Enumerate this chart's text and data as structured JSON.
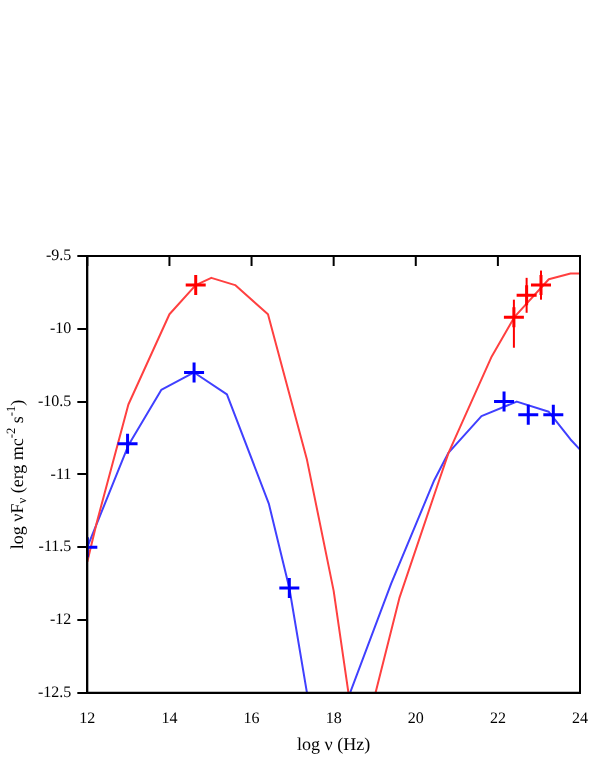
{
  "chart_data": {
    "type": "line",
    "xlabel": "log ν (Hz)",
    "ylabel": "log νF$_{ν}$ (erg mc$^{-2}$ s$^{-1}$)",
    "xlim": [
      12,
      24
    ],
    "xticks": [
      12,
      14,
      16,
      18,
      20,
      22,
      24
    ],
    "ylim": [
      -12.5,
      -9.5
    ],
    "yticks": [
      -12.5,
      -12,
      -11.5,
      -11,
      -10.5,
      -10,
      -9.5
    ],
    "grid": false,
    "legend": false,
    "series": [
      {
        "color": "#ff4040",
        "line_style": "solid",
        "marker": "none",
        "x": [
          12,
          12.23,
          13,
          14,
          14.64,
          15.02,
          15.6,
          16.4,
          17.35,
          18,
          18.36,
          null,
          19.02,
          19.6,
          20.57,
          20.8,
          21.85,
          22.4,
          23.24,
          23.77,
          24
        ],
        "values": [
          -11.6,
          -11.33,
          -10.52,
          -9.9,
          -9.7,
          -9.65,
          -9.7,
          -9.9,
          -10.9,
          -11.8,
          -12.5,
          null,
          -12.5,
          -11.85,
          -11.04,
          -10.85,
          -10.19,
          -9.92,
          -9.66,
          -9.62,
          -9.62
        ]
      },
      {
        "color": "#4040ff",
        "line_style": "solid",
        "marker": "none",
        "x": [
          12,
          13,
          13.8,
          14.6,
          15.4,
          16.42,
          16.92,
          17.35,
          null,
          18.4,
          19.4,
          20.45,
          20.8,
          21.6,
          22.46,
          23.24,
          23.77,
          24
        ],
        "values": [
          -11.5,
          -10.8,
          -10.42,
          -10.3,
          -10.45,
          -11.2,
          -11.78,
          -12.5,
          null,
          -12.5,
          -11.75,
          -11.04,
          -10.85,
          -10.6,
          -10.5,
          -10.57,
          -10.76,
          -10.83
        ]
      },
      {
        "type": "scatter",
        "color": "#ff0000",
        "marker": "cross",
        "x": [
          14.64,
          22.39,
          22.7,
          23.05
        ],
        "values": [
          -9.7,
          -9.92,
          -9.77,
          -9.7
        ],
        "errors": [
          null,
          [
            -10.13,
            -9.8
          ],
          0.12,
          0.1
        ]
      },
      {
        "type": "scatter",
        "color": "#0000ff",
        "marker": "cross",
        "x": [
          12,
          12.98,
          14.6,
          16.92,
          22.15,
          22.74,
          23.35
        ],
        "values": [
          -11.5,
          -10.79,
          -10.3,
          -11.78,
          -10.5,
          -10.59,
          -10.59
        ]
      }
    ]
  }
}
